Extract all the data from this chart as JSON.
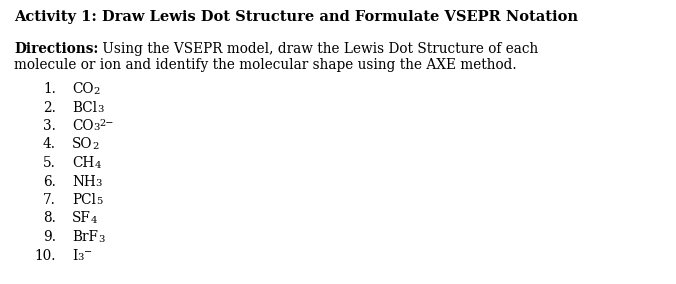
{
  "title": "Activity 1: Draw Lewis Dot Structure and Formulate VSEPR Notation",
  "directions_bold": "Directions:",
  "directions_text": " Using the VSEPR model, draw the Lewis Dot Structure of each",
  "directions_text2": "molecule or ion and identify the molecular shape using the AXE method.",
  "items": [
    {
      "num": "1.",
      "parts": [
        {
          "text": "CO",
          "style": "main"
        },
        {
          "text": "2",
          "style": "sub"
        },
        {
          "text": "",
          "style": "sup"
        }
      ]
    },
    {
      "num": "2.",
      "parts": [
        {
          "text": "BCl",
          "style": "main"
        },
        {
          "text": "3",
          "style": "sub"
        },
        {
          "text": "",
          "style": "sup"
        }
      ]
    },
    {
      "num": "3.",
      "parts": [
        {
          "text": "CO",
          "style": "main"
        },
        {
          "text": "3",
          "style": "sub"
        },
        {
          "text": "2−",
          "style": "sup"
        }
      ]
    },
    {
      "num": "4.",
      "parts": [
        {
          "text": "SO",
          "style": "main"
        },
        {
          "text": "2",
          "style": "sub"
        },
        {
          "text": "",
          "style": "sup"
        }
      ]
    },
    {
      "num": "5.",
      "parts": [
        {
          "text": "CH",
          "style": "main"
        },
        {
          "text": "4",
          "style": "sub"
        },
        {
          "text": "",
          "style": "sup"
        }
      ]
    },
    {
      "num": "6.",
      "parts": [
        {
          "text": "NH",
          "style": "main"
        },
        {
          "text": "3",
          "style": "sub"
        },
        {
          "text": "",
          "style": "sup"
        }
      ]
    },
    {
      "num": "7.",
      "parts": [
        {
          "text": "PCl",
          "style": "main"
        },
        {
          "text": "5",
          "style": "sub"
        },
        {
          "text": "",
          "style": "sup"
        }
      ]
    },
    {
      "num": "8.",
      "parts": [
        {
          "text": "SF",
          "style": "main"
        },
        {
          "text": "4",
          "style": "sub"
        },
        {
          "text": "",
          "style": "sup"
        }
      ]
    },
    {
      "num": "9.",
      "parts": [
        {
          "text": "BrF",
          "style": "main"
        },
        {
          "text": "3",
          "style": "sub"
        },
        {
          "text": "",
          "style": "sup"
        }
      ]
    },
    {
      "num": "10.",
      "parts": [
        {
          "text": "I",
          "style": "main"
        },
        {
          "text": "3",
          "style": "sub"
        },
        {
          "text": "−",
          "style": "sup"
        }
      ]
    }
  ],
  "bg_color": "#ffffff",
  "text_color": "#000000",
  "title_fontsize": 10.5,
  "body_fontsize": 9.8,
  "item_fontsize": 9.8,
  "sub_fontsize": 7.2,
  "sup_fontsize": 7.0
}
